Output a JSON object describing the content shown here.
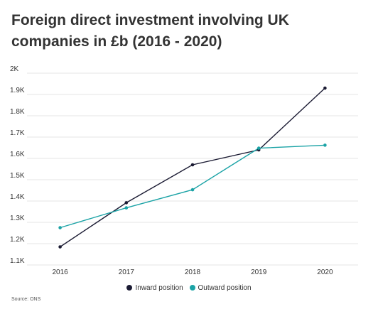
{
  "title_line1": "Foreign direct investment involving UK",
  "title_line2": "companies in £b (2016 - 2020)",
  "source": "Source: ONS",
  "chart_data": {
    "type": "line",
    "title": "Foreign direct investment involving UK companies in £b (2016 - 2020)",
    "x": [
      "2016",
      "2017",
      "2018",
      "2019",
      "2020"
    ],
    "ylim": [
      1100,
      2000
    ],
    "y_ticks": [
      1100,
      1200,
      1300,
      1400,
      1500,
      1600,
      1700,
      1800,
      1900,
      2000
    ],
    "y_tick_labels": [
      "1.1K",
      "1.2K",
      "1.3K",
      "1.4K",
      "1.5K",
      "1.6K",
      "1.7K",
      "1.8K",
      "1.9K",
      "2K"
    ],
    "grid": true,
    "legend_position": "bottom",
    "series": [
      {
        "name": "Inward position",
        "color": "#1b1b33",
        "values": [
          1185,
          1392,
          1570,
          1640,
          1930
        ]
      },
      {
        "name": "Outward position",
        "color": "#1ba3a6",
        "values": [
          1275,
          1368,
          1453,
          1648,
          1662
        ]
      }
    ]
  }
}
